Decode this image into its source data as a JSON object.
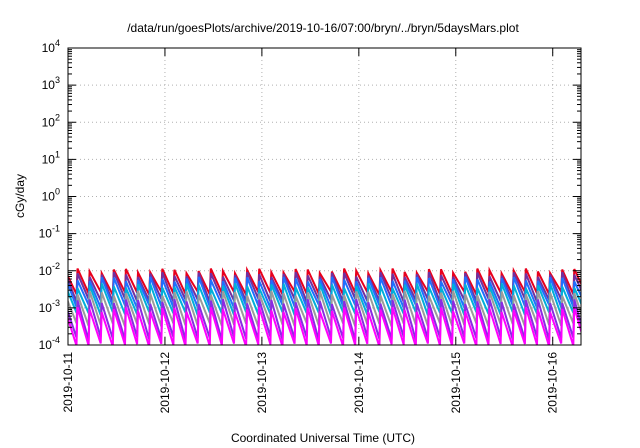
{
  "chart_data": {
    "type": "line",
    "title": "/data/run/goesPlots/archive/2019-10-16/07:00/bryn/../bryn/5daysMars.plot",
    "xlabel": "Coordinated Universal Time (UTC)",
    "ylabel": "cGy/day",
    "y_scale": "log",
    "ylim": [
      0.0001,
      10000
    ],
    "y_tick_bases": [
      "10",
      "10",
      "10",
      "10",
      "10",
      "10",
      "10",
      "10",
      "10"
    ],
    "y_tick_exponents": [
      "-4",
      "-3",
      "-2",
      "-1",
      "0",
      "1",
      "2",
      "3",
      "4"
    ],
    "xlim": [
      "2019-10-11T00:00",
      "2019-10-16T07:00"
    ],
    "x_ticks": [
      "2019-10-11",
      "2019-10-12",
      "2019-10-13",
      "2019-10-14",
      "2019-10-15",
      "2019-10-16"
    ],
    "grid": true,
    "sawtooth_period_hours": 3,
    "series": [
      {
        "color": "#e8001c",
        "peak": 0.01,
        "trough": 0.0025
      },
      {
        "color": "#7030a0",
        "peak": 0.008,
        "trough": 0.0016
      },
      {
        "color": "#1f6fff",
        "peak": 0.006,
        "trough": 0.0011
      },
      {
        "color": "#00b0d8",
        "peak": 0.004,
        "trough": 0.0007
      },
      {
        "color": "#9b9b9b",
        "peak": 0.0025,
        "trough": 0.00035
      },
      {
        "color": "#8a2be2",
        "peak": 0.0015,
        "trough": 0.00015
      },
      {
        "color": "#ff00ff",
        "peak": 0.0009,
        "trough": 0.0001
      }
    ]
  }
}
